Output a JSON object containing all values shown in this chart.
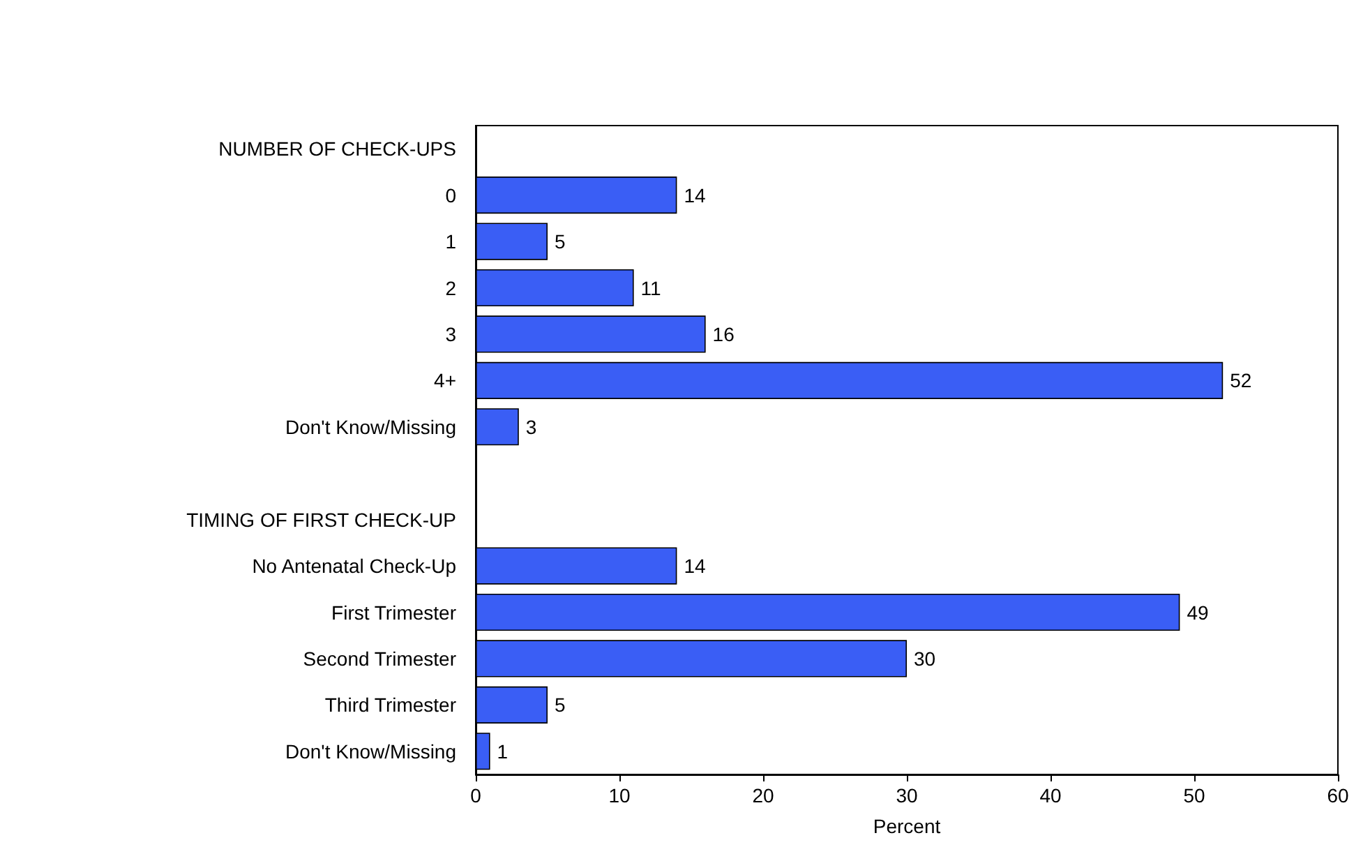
{
  "chart_data": {
    "type": "bar",
    "orientation": "horizontal",
    "xlabel": "Percent",
    "categories": [
      "NUMBER OF CHECK-UPS",
      "0",
      "1",
      "2",
      "3",
      "4+",
      "Don't Know/Missing",
      null,
      "TIMING OF FIRST CHECK-UP",
      "No Antenatal Check-Up",
      "First Trimester",
      "Second Trimester",
      "Third Trimester",
      "Don't Know/Missing"
    ],
    "values": [
      null,
      14,
      5,
      11,
      16,
      52,
      3,
      null,
      null,
      14,
      49,
      30,
      5,
      1
    ],
    "color": "#3a5ef5",
    "data_labels": true,
    "xlim": [
      0,
      60
    ],
    "xticks": [
      0,
      10,
      20,
      30,
      40,
      50,
      60
    ],
    "grid": false
  }
}
